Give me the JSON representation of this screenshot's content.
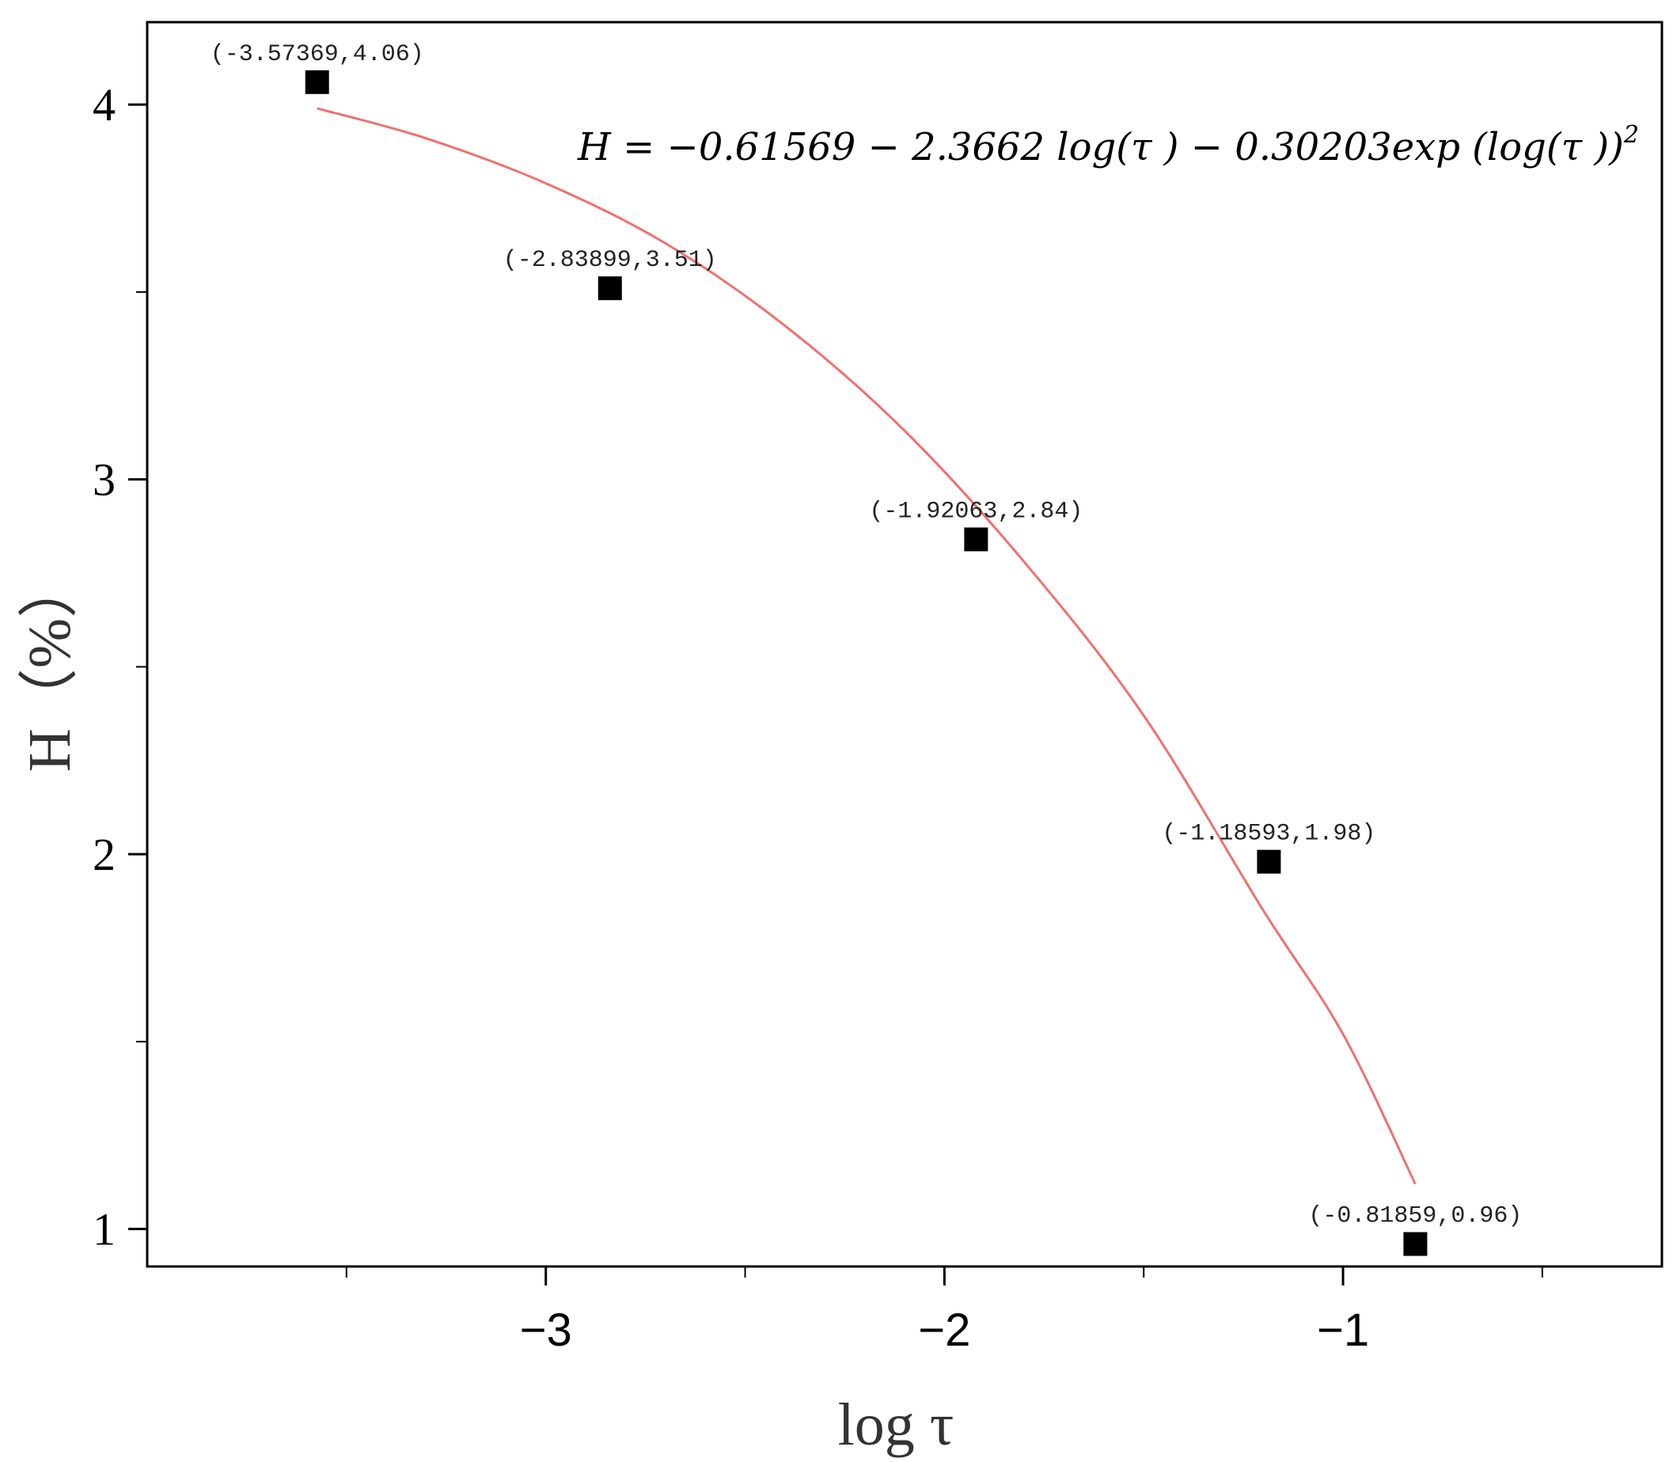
{
  "chart_data": {
    "type": "scatter",
    "title": "",
    "xlabel": "log τ",
    "ylabel": "H（%）",
    "xlim": [
      -4.0,
      -0.2
    ],
    "ylim": [
      0.9,
      4.22
    ],
    "xticks": [
      -3,
      -2,
      -1
    ],
    "xtick_labels": [
      "−3",
      "−2",
      "−1"
    ],
    "xminor_ticks": [
      -3.5,
      -2.5,
      -1.5,
      -0.5
    ],
    "yticks": [
      1,
      2,
      3,
      4
    ],
    "ytick_labels": [
      "1",
      "2",
      "3",
      "4"
    ],
    "yminor_ticks": [
      1.5,
      2.5,
      3.5
    ],
    "grid": false,
    "legend": false,
    "series": [
      {
        "kind": "scatter",
        "marker": "square",
        "color": "#000000",
        "points": [
          {
            "x": -3.57369,
            "y": 4.06,
            "label": "(-3.57369,4.06)"
          },
          {
            "x": -2.83899,
            "y": 3.51,
            "label": "(-2.83899,3.51)"
          },
          {
            "x": -1.92063,
            "y": 2.84,
            "label": "(-1.92063,2.84)"
          },
          {
            "x": -1.18593,
            "y": 1.98,
            "label": "(-1.18593,1.98)"
          },
          {
            "x": -0.81859,
            "y": 0.96,
            "label": "(-0.81859,0.96)"
          }
        ]
      },
      {
        "kind": "fit-line",
        "color": "#f07070",
        "x_range": [
          -3.57369,
          -0.81859
        ],
        "points": [
          {
            "x": -3.57369,
            "y": 3.99
          },
          {
            "x": -3.3,
            "y": 3.91
          },
          {
            "x": -3.0,
            "y": 3.79
          },
          {
            "x": -2.7,
            "y": 3.63
          },
          {
            "x": -2.4,
            "y": 3.41
          },
          {
            "x": -2.1,
            "y": 3.13
          },
          {
            "x": -1.8,
            "y": 2.78
          },
          {
            "x": -1.5,
            "y": 2.37
          },
          {
            "x": -1.2,
            "y": 1.85
          },
          {
            "x": -1.0,
            "y": 1.52
          },
          {
            "x": -0.81859,
            "y": 1.12
          }
        ]
      }
    ],
    "annotations": {
      "equation": "H = −0.61569 − 2.3662 log(τ ) − 0.30203exp (log(τ ))",
      "equation_superscript": "2"
    }
  }
}
